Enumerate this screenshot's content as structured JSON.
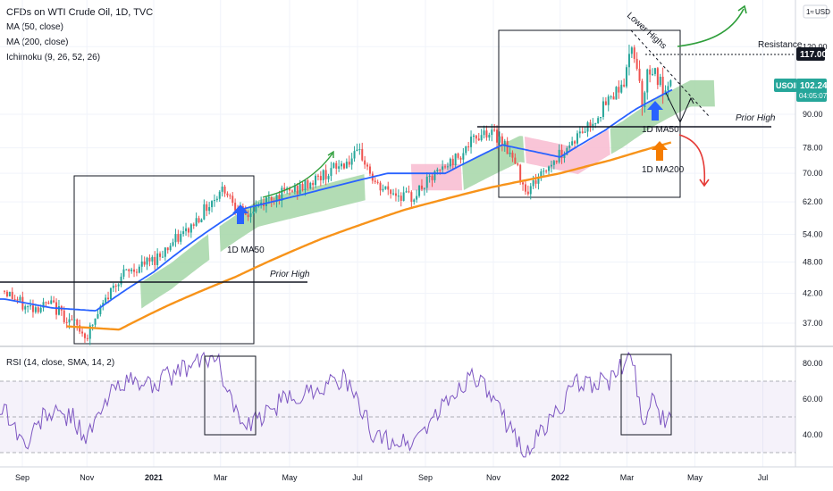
{
  "header": {
    "title": "CFDs on WTI Crude Oil, 1D, TVC",
    "indicators": [
      "MA (50, close)",
      "MA (200, close)",
      "Ichimoku (9, 26, 52, 26)"
    ],
    "currency": "USD"
  },
  "rsi_header": "RSI (14, close, SMA, 14, 2)",
  "symbol_tag": {
    "symbol": "USOIL",
    "price": "102.24",
    "countdown": "04:05:07"
  },
  "resistance_price_tag": "117.00",
  "annotations": {
    "lower_highs": "Lower Highs",
    "resistance": "Resistance",
    "prior_high": "Prior High",
    "ma50_label": "1D MA50",
    "ma200_label": "1D MA200"
  },
  "colors": {
    "candle_up": "#26a69a",
    "candle_down": "#ef5350",
    "ma50": "#2962ff",
    "ma200": "#f7931a",
    "cloud_bull": "#a5d6a7",
    "cloud_bear": "#f8bbd0",
    "rsi": "#7e57c2",
    "arrow_green": "#2e9e3a",
    "arrow_red": "#e53935",
    "arrow_blue": "#2962ff",
    "arrow_orange": "#f57c00"
  },
  "chart_data": {
    "type": "candlestick",
    "x_axis": {
      "ticks": [
        "Sep",
        "Nov",
        "2021",
        "Mar",
        "May",
        "Jul",
        "Sep",
        "Nov",
        "2022",
        "Mar",
        "May",
        "Jul"
      ]
    },
    "y_axis": {
      "scale": "log",
      "ticks": [
        37.0,
        42.0,
        48.0,
        54.0,
        62.0,
        70.0,
        78.0,
        90.0,
        120.0
      ],
      "ylim": [
        32,
        140
      ]
    },
    "price_anchors": [
      {
        "date": "2020-08-20",
        "value": 42.5
      },
      {
        "date": "2020-09-08",
        "value": 39.5
      },
      {
        "date": "2020-10-01",
        "value": 40.0
      },
      {
        "date": "2020-11-02",
        "value": 35.0
      },
      {
        "date": "2020-12-01",
        "value": 45.0
      },
      {
        "date": "2021-01-01",
        "value": 48.5
      },
      {
        "date": "2021-02-01",
        "value": 55.0
      },
      {
        "date": "2021-03-05",
        "value": 66.0
      },
      {
        "date": "2021-03-23",
        "value": 58.0
      },
      {
        "date": "2021-04-15",
        "value": 63.0
      },
      {
        "date": "2021-05-15",
        "value": 66.0
      },
      {
        "date": "2021-07-06",
        "value": 76.0
      },
      {
        "date": "2021-07-20",
        "value": 66.0
      },
      {
        "date": "2021-08-20",
        "value": 63.0
      },
      {
        "date": "2021-09-30",
        "value": 75.0
      },
      {
        "date": "2021-10-25",
        "value": 84.0
      },
      {
        "date": "2021-11-10",
        "value": 81.0
      },
      {
        "date": "2021-12-02",
        "value": 65.0
      },
      {
        "date": "2022-01-01",
        "value": 76.0
      },
      {
        "date": "2022-02-01",
        "value": 88.0
      },
      {
        "date": "2022-03-01",
        "value": 105.0
      },
      {
        "date": "2022-03-07",
        "value": 123.0
      },
      {
        "date": "2022-03-16",
        "value": 95.0
      },
      {
        "date": "2022-03-23",
        "value": 112.0
      },
      {
        "date": "2022-04-06",
        "value": 96.0
      },
      {
        "date": "2022-04-12",
        "value": 102.24
      }
    ],
    "ma50_anchors": [
      {
        "date": "2020-08-20",
        "value": 41.0
      },
      {
        "date": "2020-10-01",
        "value": 39.5
      },
      {
        "date": "2020-11-10",
        "value": 39.0
      },
      {
        "date": "2021-01-01",
        "value": 46.0
      },
      {
        "date": "2021-03-20",
        "value": 60.0
      },
      {
        "date": "2021-05-15",
        "value": 64.0
      },
      {
        "date": "2021-07-30",
        "value": 70.0
      },
      {
        "date": "2021-09-20",
        "value": 70.0
      },
      {
        "date": "2021-11-10",
        "value": 79.0
      },
      {
        "date": "2022-01-01",
        "value": 75.0
      },
      {
        "date": "2022-02-10",
        "value": 84.0
      },
      {
        "date": "2022-03-10",
        "value": 92.0
      },
      {
        "date": "2022-04-12",
        "value": 100.0
      }
    ],
    "ma200_anchors": [
      {
        "date": "2020-10-15",
        "value": 36.5
      },
      {
        "date": "2020-12-01",
        "value": 36.0
      },
      {
        "date": "2021-01-15",
        "value": 40.0
      },
      {
        "date": "2021-03-15",
        "value": 45.0
      },
      {
        "date": "2021-06-01",
        "value": 53.0
      },
      {
        "date": "2021-08-15",
        "value": 60.0
      },
      {
        "date": "2021-11-01",
        "value": 66.0
      },
      {
        "date": "2022-01-01",
        "value": 70.0
      },
      {
        "date": "2022-02-15",
        "value": 74.0
      },
      {
        "date": "2022-04-12",
        "value": 80.0
      }
    ],
    "rsi": {
      "y_ticks": [
        40.0,
        60.0,
        80.0
      ],
      "ylim": [
        25,
        90
      ],
      "bands": {
        "upper": 70,
        "middle": 50,
        "lower": 30
      },
      "anchors": [
        {
          "date": "2020-08-20",
          "value": 55
        },
        {
          "date": "2020-09-08",
          "value": 33
        },
        {
          "date": "2020-09-25",
          "value": 52
        },
        {
          "date": "2020-10-20",
          "value": 50
        },
        {
          "date": "2020-11-02",
          "value": 38
        },
        {
          "date": "2020-11-30",
          "value": 70
        },
        {
          "date": "2020-12-30",
          "value": 68
        },
        {
          "date": "2021-02-25",
          "value": 85
        },
        {
          "date": "2021-03-23",
          "value": 42
        },
        {
          "date": "2021-04-25",
          "value": 58
        },
        {
          "date": "2021-06-20",
          "value": 72
        },
        {
          "date": "2021-07-20",
          "value": 38
        },
        {
          "date": "2021-08-20",
          "value": 35
        },
        {
          "date": "2021-10-15",
          "value": 75
        },
        {
          "date": "2021-11-05",
          "value": 55
        },
        {
          "date": "2021-12-02",
          "value": 30
        },
        {
          "date": "2022-01-15",
          "value": 68
        },
        {
          "date": "2022-02-15",
          "value": 70
        },
        {
          "date": "2022-03-07",
          "value": 85
        },
        {
          "date": "2022-03-16",
          "value": 44
        },
        {
          "date": "2022-03-24",
          "value": 63
        },
        {
          "date": "2022-04-06",
          "value": 44
        },
        {
          "date": "2022-04-12",
          "value": 50
        }
      ]
    }
  }
}
